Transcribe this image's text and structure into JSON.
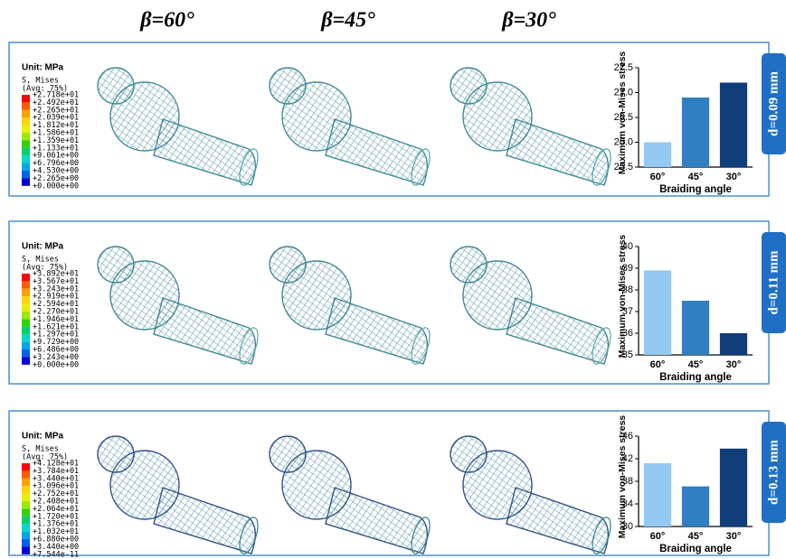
{
  "headers": [
    "β=60°",
    "β=45°",
    "β=30°"
  ],
  "rows": [
    {
      "label": "d=0.09 mm",
      "legend": {
        "unit": "Unit: MPa",
        "variable": "S, Mises",
        "averaging": "(Avg: 75%)",
        "levels": [
          "+2.718e+01",
          "+2.492e+01",
          "+2.265e+01",
          "+2.039e+01",
          "+1.812e+01",
          "+1.586e+01",
          "+1.359e+01",
          "+1.133e+01",
          "+9.061e+00",
          "+6.796e+00",
          "+4.530e+00",
          "+2.265e+00",
          "+0.000e+00"
        ]
      }
    },
    {
      "label": "d=0.11 mm",
      "legend": {
        "unit": "Unit: MPa",
        "variable": "S, Mises",
        "averaging": "(Avg: 75%)",
        "levels": [
          "+3.892e+01",
          "+3.567e+01",
          "+3.243e+01",
          "+2.919e+01",
          "+2.594e+01",
          "+2.270e+01",
          "+1.946e+01",
          "+1.621e+01",
          "+1.297e+01",
          "+9.729e+00",
          "+6.486e+00",
          "+3.243e+00",
          "+0.000e+00"
        ]
      }
    },
    {
      "label": "d=0.13 mm",
      "legend": {
        "unit": "Unit: MPa",
        "variable": "S, Mises",
        "averaging": "(Avg: 75%)",
        "levels": [
          "+4.128e+01",
          "+3.784e+01",
          "+3.440e+01",
          "+3.096e+01",
          "+2.752e+01",
          "+2.408e+01",
          "+2.064e+01",
          "+1.720e+01",
          "+1.376e+01",
          "+1.032e+01",
          "+6.880e+00",
          "+3.440e+00",
          "+7.544e-11"
        ]
      }
    }
  ],
  "chart_data": [
    {
      "type": "bar",
      "y_label": "Maximum von-Mises stress",
      "x_label": "Braiding angle",
      "categories": [
        "60°",
        "45°",
        "30°"
      ],
      "values": [
        26.0,
        26.9,
        27.2
      ],
      "colors": [
        "#93c9f2",
        "#2f7fc2",
        "#0f3d7a"
      ],
      "ylim": [
        25.5,
        27.5
      ],
      "yticks": [
        25.5,
        {
          "value": 26,
          "label": "26.0"
        },
        26.5,
        {
          "value": 27,
          "label": "27.0"
        },
        27.5
      ]
    },
    {
      "type": "bar",
      "y_label": "Maximum von-Mises stress",
      "x_label": "Braiding angle",
      "categories": [
        "60°",
        "45°",
        "30°"
      ],
      "values": [
        38.9,
        37.5,
        36.0
      ],
      "colors": [
        "#93c9f2",
        "#2f7fc2",
        "#0f3d7a"
      ],
      "ylim": [
        35,
        40
      ],
      "yticks": [
        35,
        36,
        37,
        38,
        39,
        40
      ]
    },
    {
      "type": "bar",
      "y_label": "Maximum von-Mises stress",
      "x_label": "Braiding angle",
      "categories": [
        "60°",
        "45°",
        "30°"
      ],
      "values": [
        41.2,
        37.1,
        43.8
      ],
      "colors": [
        "#93c9f2",
        "#2f7fc2",
        "#0f3d7a"
      ],
      "ylim": [
        30,
        46
      ],
      "yticks": [
        30,
        34,
        38,
        42,
        46
      ]
    }
  ]
}
